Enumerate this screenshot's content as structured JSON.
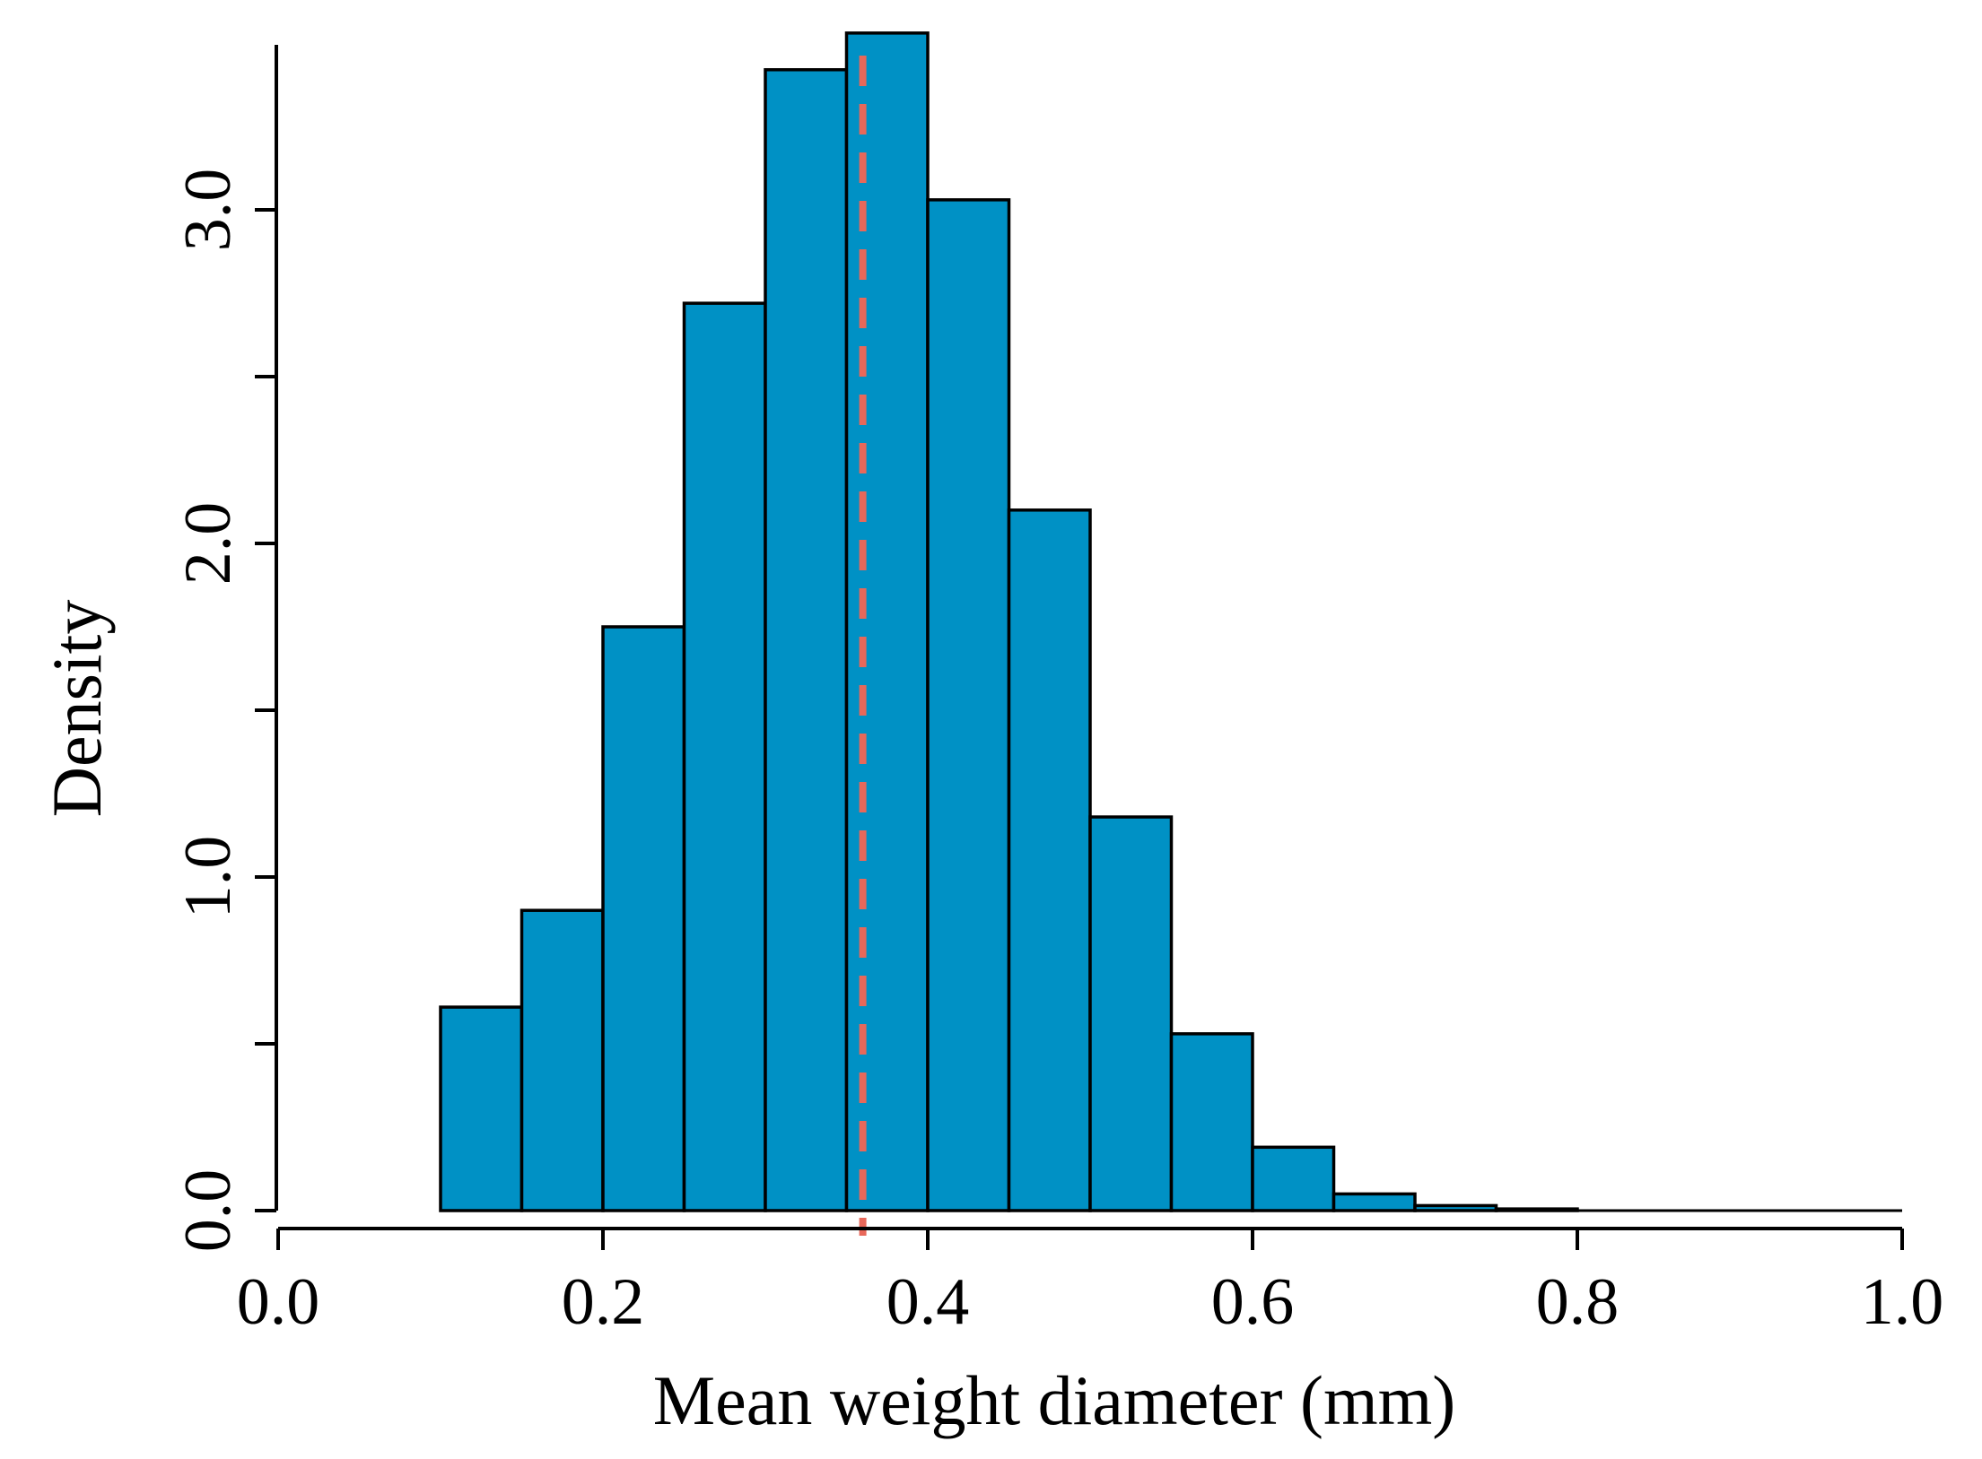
{
  "chart_data": {
    "type": "bar",
    "subtype": "histogram",
    "title": "",
    "xlabel": "Mean weight diameter (mm)",
    "ylabel": "Density",
    "xlim": [
      0.0,
      1.0
    ],
    "ylim": [
      0.0,
      3.5
    ],
    "x_ticks": [
      0.0,
      0.2,
      0.4,
      0.6,
      0.8,
      1.0
    ],
    "x_tick_labels": [
      "0.0",
      "0.2",
      "0.4",
      "0.6",
      "0.8",
      "1.0"
    ],
    "y_ticks": [
      0.0,
      0.5,
      1.0,
      1.5,
      2.0,
      2.5,
      3.0
    ],
    "y_tick_labels": [
      "0.0",
      "",
      "1.0",
      "",
      "2.0",
      "",
      "3.0"
    ],
    "bins": [
      {
        "start": 0.1,
        "end": 0.15,
        "density": 0.61
      },
      {
        "start": 0.15,
        "end": 0.2,
        "density": 0.9
      },
      {
        "start": 0.2,
        "end": 0.25,
        "density": 1.75
      },
      {
        "start": 0.25,
        "end": 0.3,
        "density": 2.72
      },
      {
        "start": 0.3,
        "end": 0.35,
        "density": 3.42
      },
      {
        "start": 0.35,
        "end": 0.4,
        "density": 3.53
      },
      {
        "start": 0.4,
        "end": 0.45,
        "density": 3.03
      },
      {
        "start": 0.45,
        "end": 0.5,
        "density": 2.1
      },
      {
        "start": 0.5,
        "end": 0.55,
        "density": 1.18
      },
      {
        "start": 0.55,
        "end": 0.6,
        "density": 0.53
      },
      {
        "start": 0.6,
        "end": 0.65,
        "density": 0.19
      },
      {
        "start": 0.65,
        "end": 0.7,
        "density": 0.05
      },
      {
        "start": 0.7,
        "end": 0.75,
        "density": 0.015
      },
      {
        "start": 0.75,
        "end": 0.8,
        "density": 0.005
      },
      {
        "start": 0.8,
        "end": 0.85,
        "density": 0.0
      },
      {
        "start": 0.85,
        "end": 0.9,
        "density": 0.0
      },
      {
        "start": 0.9,
        "end": 0.95,
        "density": 0.0
      },
      {
        "start": 0.95,
        "end": 1.0,
        "density": 0.0
      }
    ],
    "mean_line": {
      "x": 0.36,
      "style": "dashed"
    },
    "grid": false,
    "colors": {
      "bar_fill": "#0091C5",
      "bar_edge": "#000000",
      "mean_line": "#E8685A",
      "axis": "#000000"
    }
  }
}
